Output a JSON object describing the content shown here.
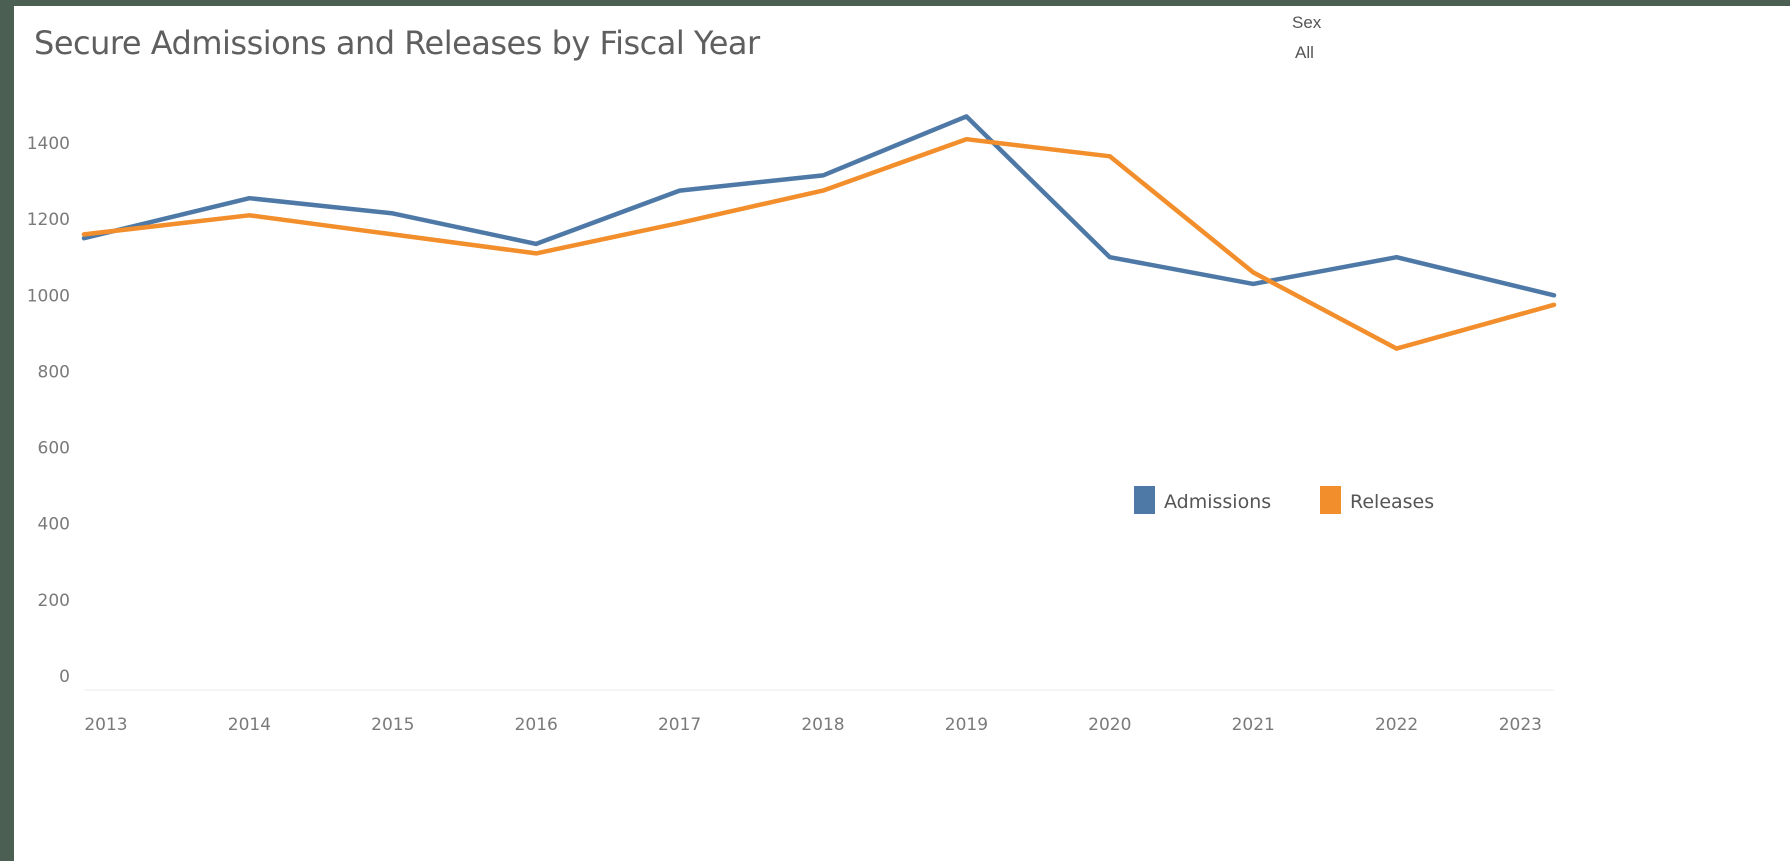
{
  "filter": {
    "label": "Sex",
    "value": "All"
  },
  "chart_data": {
    "type": "line",
    "title": "Secure Admissions and Releases by Fiscal Year",
    "xlabel": "",
    "ylabel": "",
    "x": [
      "2013",
      "2014",
      "2015",
      "2016",
      "2017",
      "2018",
      "2019",
      "2020",
      "2021",
      "2022",
      "2023"
    ],
    "ylim": [
      0,
      1500
    ],
    "yticks": [
      0,
      200,
      400,
      600,
      800,
      1000,
      1200,
      1400
    ],
    "grid": false,
    "legend": "right, mid-height",
    "series": [
      {
        "name": "Admissions",
        "color": "#4e79a7",
        "values": [
          1150,
          1255,
          1215,
          1135,
          1275,
          1315,
          1470,
          1100,
          1030,
          1100,
          1000
        ]
      },
      {
        "name": "Releases",
        "color": "#f28e2b",
        "values": [
          1160,
          1210,
          1160,
          1110,
          1190,
          1275,
          1410,
          1365,
          1060,
          860,
          975
        ]
      }
    ]
  }
}
